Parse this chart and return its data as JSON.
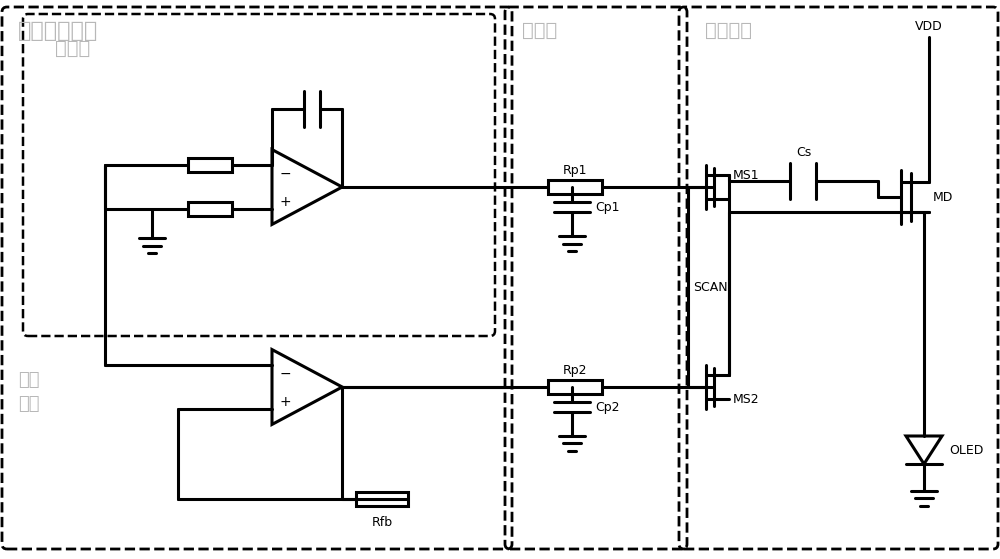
{
  "bg_color": "#ffffff",
  "line_color": "#000000",
  "light_text_color": "#b8b8b8",
  "label_outer": "外围驱动电路",
  "label_integrator": "积分器",
  "label_dataline": "数据线",
  "label_pixel": "像素电路",
  "label_voltage": "电压\n数据",
  "label_VDD": "VDD",
  "label_Cs": "Cs",
  "label_MD": "MD",
  "label_MS1": "MS1",
  "label_MS2": "MS2",
  "label_SCAN": "SCAN",
  "label_OLED": "OLED",
  "label_Rp1": "Rp1",
  "label_Rp2": "Rp2",
  "label_Rfb": "Rfb",
  "label_Cp1": "Cp1",
  "label_Cp2": "Cp2"
}
